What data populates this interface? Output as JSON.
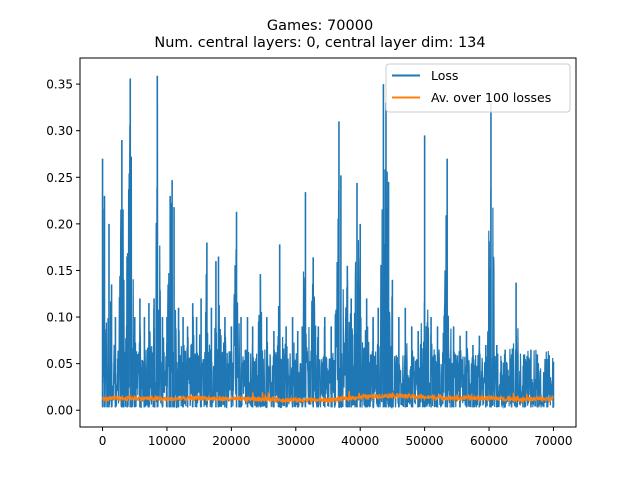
{
  "chart_data": {
    "type": "line",
    "title": "Games: 70000",
    "subtitle": "Num. central layers: 0, central layer dim: 134",
    "xlabel": "",
    "ylabel": "",
    "xlim": [
      -3500,
      73500
    ],
    "ylim": [
      -0.018,
      0.378
    ],
    "x_ticks": [
      0,
      10000,
      20000,
      30000,
      40000,
      50000,
      60000,
      70000
    ],
    "y_ticks": [
      0.0,
      0.05,
      0.1,
      0.15,
      0.2,
      0.25,
      0.3,
      0.35
    ],
    "x_tick_labels": [
      "0",
      "10000",
      "20000",
      "30000",
      "40000",
      "50000",
      "60000",
      "70000"
    ],
    "y_tick_labels": [
      "0.00",
      "0.05",
      "0.10",
      "0.15",
      "0.20",
      "0.25",
      "0.30",
      "0.35"
    ],
    "grid": false,
    "legend_position": "top-right",
    "series": [
      {
        "name": "Loss",
        "color": "#1f77b4",
        "baseline_min": 0.003,
        "peaks": [
          [
            0,
            0.27
          ],
          [
            300,
            0.23
          ],
          [
            1000,
            0.2
          ],
          [
            1400,
            0.135
          ],
          [
            2000,
            0.1
          ],
          [
            3000,
            0.29
          ],
          [
            3300,
            0.14
          ],
          [
            3800,
            0.165
          ],
          [
            4300,
            0.356
          ],
          [
            5000,
            0.1
          ],
          [
            5800,
            0.12
          ],
          [
            6500,
            0.1
          ],
          [
            7200,
            0.115
          ],
          [
            8000,
            0.12
          ],
          [
            8500,
            0.359
          ],
          [
            9300,
            0.1
          ],
          [
            10000,
            0.1
          ],
          [
            10500,
            0.23
          ],
          [
            10800,
            0.247
          ],
          [
            11100,
            0.218
          ],
          [
            11800,
            0.11
          ],
          [
            12500,
            0.1
          ],
          [
            13200,
            0.09
          ],
          [
            14000,
            0.115
          ],
          [
            14600,
            0.1
          ],
          [
            15300,
            0.12
          ],
          [
            16200,
            0.18
          ],
          [
            16900,
            0.11
          ],
          [
            17600,
            0.16
          ],
          [
            18000,
            0.165
          ],
          [
            19000,
            0.1
          ],
          [
            20000,
            0.09
          ],
          [
            20800,
            0.213
          ],
          [
            21500,
            0.1
          ],
          [
            22500,
            0.1
          ],
          [
            23300,
            0.09
          ],
          [
            24500,
            0.146
          ],
          [
            25500,
            0.1
          ],
          [
            26600,
            0.085
          ],
          [
            27500,
            0.178
          ],
          [
            28500,
            0.09
          ],
          [
            29500,
            0.1
          ],
          [
            30300,
            0.085
          ],
          [
            31000,
            0.09
          ],
          [
            31500,
            0.234
          ],
          [
            32700,
            0.164
          ],
          [
            33500,
            0.09
          ],
          [
            34500,
            0.1
          ],
          [
            35500,
            0.09
          ],
          [
            36700,
            0.31
          ],
          [
            37000,
            0.252
          ],
          [
            38000,
            0.155
          ],
          [
            38600,
            0.12
          ],
          [
            39500,
            0.244
          ],
          [
            40000,
            0.2
          ],
          [
            41000,
            0.12
          ],
          [
            42000,
            0.1
          ],
          [
            42800,
            0.11
          ],
          [
            43600,
            0.35
          ],
          [
            44000,
            0.33
          ],
          [
            44400,
            0.245
          ],
          [
            45000,
            0.14
          ],
          [
            46000,
            0.1
          ],
          [
            47000,
            0.11
          ],
          [
            48000,
            0.09
          ],
          [
            49000,
            0.085
          ],
          [
            50000,
            0.295
          ],
          [
            51000,
            0.1
          ],
          [
            52000,
            0.09
          ],
          [
            53500,
            0.27
          ],
          [
            54500,
            0.09
          ],
          [
            55500,
            0.08
          ],
          [
            56500,
            0.085
          ],
          [
            57500,
            0.07
          ],
          [
            58500,
            0.08
          ],
          [
            59500,
            0.07
          ],
          [
            60300,
            0.33
          ],
          [
            61200,
            0.07
          ],
          [
            62500,
            0.065
          ],
          [
            63500,
            0.06
          ],
          [
            64200,
            0.137
          ],
          [
            65500,
            0.06
          ],
          [
            66500,
            0.065
          ],
          [
            67500,
            0.06
          ],
          [
            69000,
            0.055
          ],
          [
            70000,
            0.052
          ]
        ]
      },
      {
        "name": "Av. over 100 losses",
        "color": "#ff7f0e",
        "points": [
          [
            0,
            0.012
          ],
          [
            5000,
            0.013
          ],
          [
            10000,
            0.012
          ],
          [
            15000,
            0.013
          ],
          [
            20000,
            0.012
          ],
          [
            25000,
            0.012
          ],
          [
            30000,
            0.011
          ],
          [
            35000,
            0.011
          ],
          [
            40000,
            0.014
          ],
          [
            45000,
            0.016
          ],
          [
            50000,
            0.014
          ],
          [
            55000,
            0.013
          ],
          [
            60000,
            0.013
          ],
          [
            65000,
            0.012
          ],
          [
            70000,
            0.012
          ]
        ]
      }
    ]
  }
}
